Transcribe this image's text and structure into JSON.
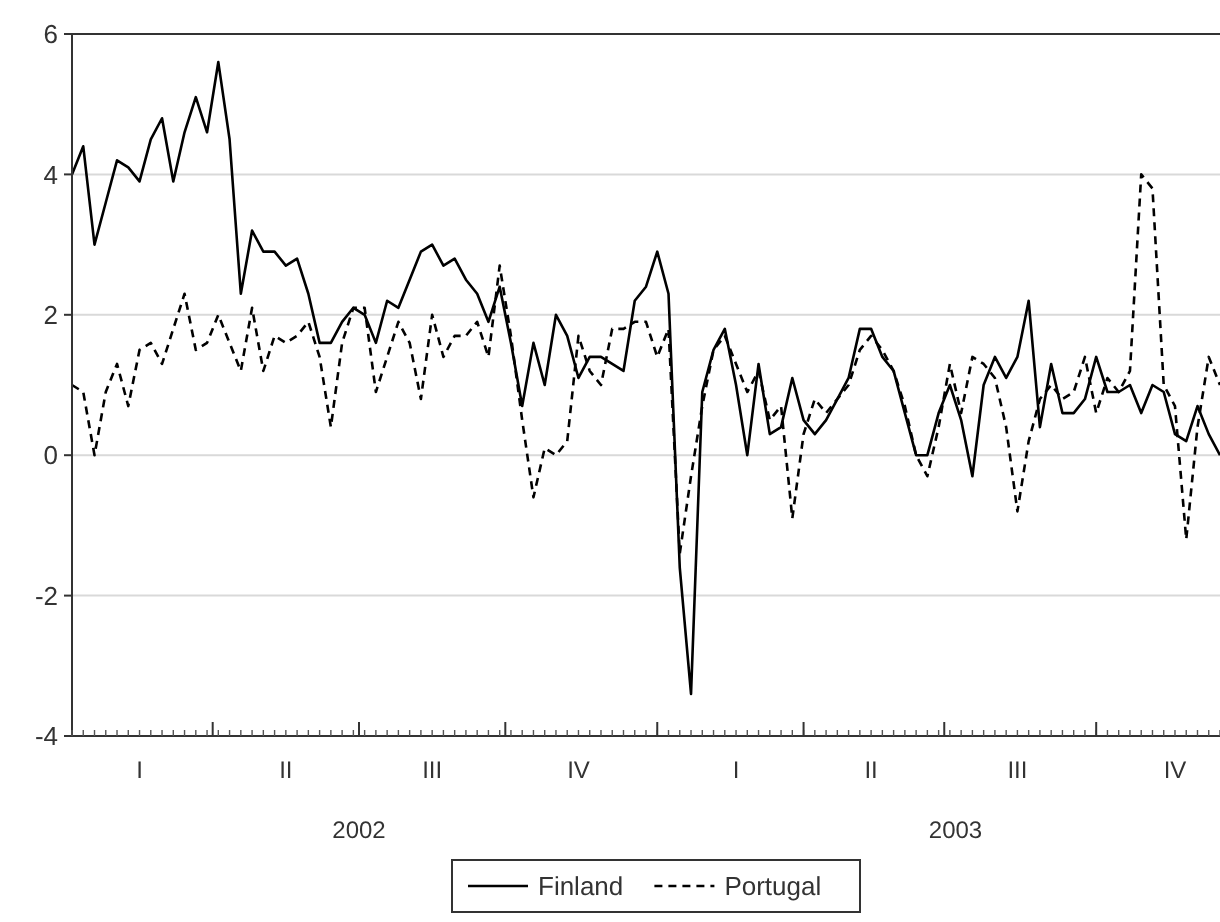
{
  "chart_data": {
    "type": "line",
    "ylim": [
      -4,
      6
    ],
    "yticks": [
      -4,
      -2,
      0,
      2,
      4,
      6
    ],
    "categories": [
      null,
      null,
      null,
      null,
      null,
      null,
      "I",
      null,
      null,
      null,
      null,
      null,
      null,
      null,
      null,
      null,
      null,
      null,
      null,
      "II",
      null,
      null,
      null,
      null,
      null,
      null,
      null,
      null,
      null,
      null,
      null,
      null,
      "III",
      null,
      null,
      null,
      null,
      null,
      null,
      null,
      null,
      null,
      null,
      null,
      null,
      "IV",
      null,
      null,
      null,
      null,
      null,
      null,
      null,
      null,
      null,
      null,
      null,
      null,
      null,
      "I",
      null,
      null,
      null,
      null,
      null,
      null,
      null,
      null,
      null,
      null,
      null,
      "II",
      null,
      null,
      null,
      null,
      null,
      null,
      null,
      null,
      null,
      null,
      null,
      null,
      "III",
      null,
      null,
      null,
      null,
      null,
      null,
      null,
      null,
      null,
      null,
      null,
      null,
      null,
      "IV",
      null,
      null,
      null,
      null
    ],
    "annotations": [
      "2002",
      "2003"
    ],
    "grid": "y",
    "legend": "bottom",
    "series": [
      {
        "name": "Finland",
        "color": "#000000",
        "line_style": "solid",
        "values": [
          4.0,
          4.4,
          3.0,
          3.6,
          4.2,
          4.1,
          3.9,
          4.5,
          4.8,
          3.9,
          4.6,
          5.1,
          4.6,
          5.6,
          4.5,
          2.3,
          3.2,
          2.9,
          2.9,
          2.7,
          2.8,
          2.3,
          1.6,
          1.6,
          1.9,
          2.1,
          2.0,
          1.6,
          2.2,
          2.1,
          2.5,
          2.9,
          3.0,
          2.7,
          2.8,
          2.5,
          2.3,
          1.9,
          2.4,
          1.6,
          0.7,
          1.6,
          1.0,
          2.0,
          1.7,
          1.1,
          1.4,
          1.4,
          1.3,
          1.2,
          2.2,
          2.4,
          2.9,
          2.3,
          -1.6,
          -3.4,
          0.9,
          1.5,
          1.8,
          1.0,
          0.0,
          1.3,
          0.3,
          0.4,
          1.1,
          0.5,
          0.3,
          0.5,
          0.8,
          1.1,
          1.8,
          1.8,
          1.4,
          1.2,
          0.6,
          0.0,
          0.0,
          0.6,
          1.0,
          0.5,
          -0.3,
          1.0,
          1.4,
          1.1,
          1.4,
          2.2,
          0.4,
          1.3,
          0.6,
          0.6,
          0.8,
          1.4,
          0.9,
          0.9,
          1.0,
          0.6,
          1.0,
          0.9,
          0.3,
          0.2,
          0.7,
          0.3,
          0.0
        ]
      },
      {
        "name": "Portugal",
        "color": "#000000",
        "line_style": "dashed",
        "values": [
          1.0,
          0.9,
          0.0,
          0.9,
          1.3,
          0.7,
          1.5,
          1.6,
          1.3,
          1.8,
          2.3,
          1.5,
          1.6,
          2.0,
          1.6,
          1.2,
          2.1,
          1.2,
          1.7,
          1.6,
          1.7,
          1.9,
          1.4,
          0.4,
          1.6,
          2.1,
          2.1,
          0.9,
          1.4,
          1.9,
          1.6,
          0.8,
          2.0,
          1.4,
          1.7,
          1.7,
          1.9,
          1.4,
          2.7,
          1.7,
          0.5,
          -0.6,
          0.1,
          0.0,
          0.2,
          1.7,
          1.2,
          1.0,
          1.8,
          1.8,
          1.9,
          1.9,
          1.4,
          1.8,
          -1.4,
          -0.3,
          0.7,
          1.5,
          1.7,
          1.3,
          0.9,
          1.2,
          0.5,
          0.7,
          -0.9,
          0.3,
          0.8,
          0.6,
          0.8,
          1.0,
          1.5,
          1.7,
          1.5,
          1.2,
          0.7,
          0.0,
          -0.3,
          0.4,
          1.3,
          0.6,
          1.4,
          1.3,
          1.1,
          0.4,
          -0.8,
          0.2,
          0.8,
          1.0,
          0.8,
          0.9,
          1.4,
          0.6,
          1.1,
          0.9,
          1.2,
          4.0,
          3.8,
          1.0,
          0.7,
          -1.2,
          0.4,
          1.4,
          1.0
        ]
      }
    ]
  }
}
